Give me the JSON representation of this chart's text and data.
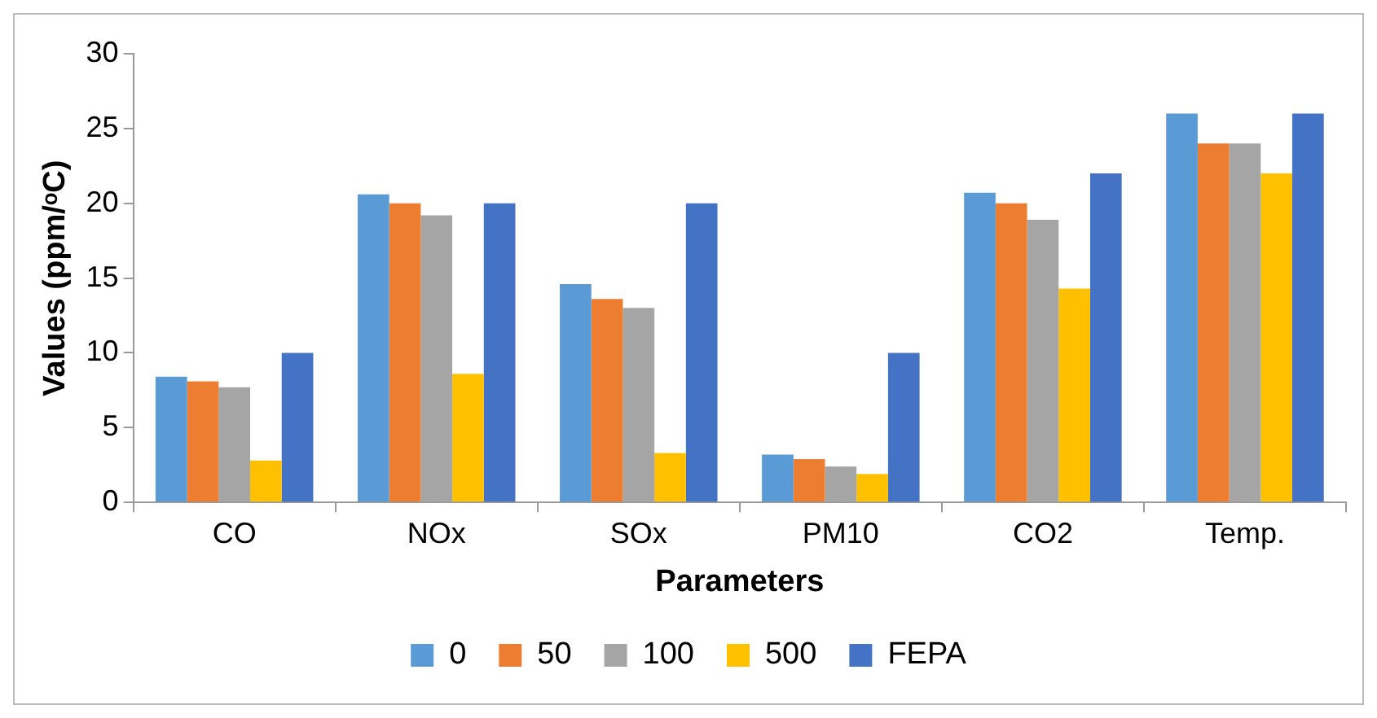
{
  "chart_data": {
    "type": "bar",
    "xlabel": "Parameters",
    "ylabel": "Values (ppm/ᵒC)",
    "categories": [
      "CO",
      "NOx",
      "SOx",
      "PM10",
      "CO2",
      "Temp."
    ],
    "series": [
      {
        "name": "0",
        "color": "#5b9bd5",
        "values": [
          8.4,
          20.6,
          14.6,
          3.2,
          20.7,
          26
        ]
      },
      {
        "name": "50",
        "color": "#ed7d31",
        "values": [
          8.1,
          20,
          13.6,
          2.9,
          20,
          24
        ]
      },
      {
        "name": "100",
        "color": "#a5a5a5",
        "values": [
          7.7,
          19.2,
          13,
          2.4,
          18.9,
          24
        ]
      },
      {
        "name": "500",
        "color": "#ffc000",
        "values": [
          2.8,
          8.6,
          3.3,
          1.9,
          14.3,
          22
        ]
      },
      {
        "name": "FEPA",
        "color": "#4472c4",
        "values": [
          10,
          20,
          20,
          10,
          22,
          26
        ]
      }
    ],
    "ylim": [
      0,
      30
    ],
    "yticks": [
      0,
      5,
      10,
      15,
      20,
      25,
      30
    ],
    "grid": false,
    "legend": "bottom"
  }
}
